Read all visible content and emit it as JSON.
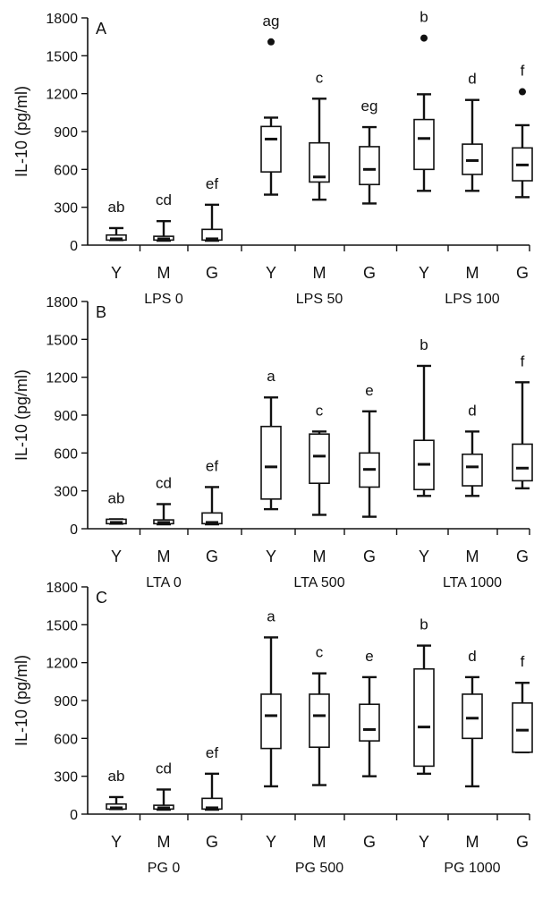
{
  "chart_data": [
    {
      "type": "box",
      "panel_label": "A",
      "ylabel": "IL-10 (pg/ml)",
      "ylim": [
        0,
        1800
      ],
      "yticks": [
        0,
        300,
        600,
        900,
        1200,
        1500,
        1800
      ],
      "categories": [
        "Y",
        "M",
        "G",
        "Y",
        "M",
        "G",
        "Y",
        "M",
        "G"
      ],
      "groups": [
        {
          "label": "LPS 0",
          "span": [
            0,
            2
          ]
        },
        {
          "label": "LPS 50",
          "span": [
            3,
            5
          ]
        },
        {
          "label": "LPS 100",
          "span": [
            6,
            8
          ]
        }
      ],
      "boxes": [
        {
          "min": 40,
          "q1": 40,
          "median": 50,
          "q3": 80,
          "max": 135,
          "outlier": null,
          "letter": "ab"
        },
        {
          "min": 35,
          "q1": 40,
          "median": 50,
          "q3": 70,
          "max": 190,
          "outlier": null,
          "letter": "cd"
        },
        {
          "min": 35,
          "q1": 40,
          "median": 50,
          "q3": 125,
          "max": 320,
          "outlier": null,
          "letter": "ef"
        },
        {
          "min": 400,
          "q1": 580,
          "median": 840,
          "q3": 940,
          "max": 1010,
          "outlier": 1610,
          "letter": "ag"
        },
        {
          "min": 360,
          "q1": 500,
          "median": 540,
          "q3": 810,
          "max": 1160,
          "outlier": null,
          "letter": "c"
        },
        {
          "min": 330,
          "q1": 480,
          "median": 600,
          "q3": 780,
          "max": 935,
          "outlier": null,
          "letter": "eg"
        },
        {
          "min": 430,
          "q1": 600,
          "median": 845,
          "q3": 995,
          "max": 1195,
          "outlier": 1640,
          "letter": "b"
        },
        {
          "min": 430,
          "q1": 560,
          "median": 670,
          "q3": 800,
          "max": 1150,
          "outlier": null,
          "letter": "d"
        },
        {
          "min": 380,
          "q1": 510,
          "median": 635,
          "q3": 770,
          "max": 950,
          "outlier": 1215,
          "letter": "f"
        }
      ]
    },
    {
      "type": "box",
      "panel_label": "B",
      "ylabel": "IL-10 (pg/ml)",
      "ylim": [
        0,
        1800
      ],
      "yticks": [
        0,
        300,
        600,
        900,
        1200,
        1500,
        1800
      ],
      "categories": [
        "Y",
        "M",
        "G",
        "Y",
        "M",
        "G",
        "Y",
        "M",
        "G"
      ],
      "groups": [
        {
          "label": "LTA 0",
          "span": [
            0,
            2
          ]
        },
        {
          "label": "LTA 500",
          "span": [
            3,
            5
          ]
        },
        {
          "label": "LTA 1000",
          "span": [
            6,
            8
          ]
        }
      ],
      "boxes": [
        {
          "min": 40,
          "q1": 40,
          "median": 50,
          "q3": 75,
          "max": 75,
          "outlier": null,
          "letter": "ab"
        },
        {
          "min": 35,
          "q1": 40,
          "median": 50,
          "q3": 70,
          "max": 195,
          "outlier": null,
          "letter": "cd"
        },
        {
          "min": 35,
          "q1": 40,
          "median": 50,
          "q3": 125,
          "max": 330,
          "outlier": null,
          "letter": "ef"
        },
        {
          "min": 155,
          "q1": 235,
          "median": 490,
          "q3": 810,
          "max": 1040,
          "outlier": null,
          "letter": "a"
        },
        {
          "min": 110,
          "q1": 360,
          "median": 575,
          "q3": 750,
          "max": 770,
          "outlier": null,
          "letter": "c"
        },
        {
          "min": 95,
          "q1": 330,
          "median": 470,
          "q3": 600,
          "max": 930,
          "outlier": null,
          "letter": "e"
        },
        {
          "min": 260,
          "q1": 310,
          "median": 510,
          "q3": 700,
          "max": 1290,
          "outlier": null,
          "letter": "b"
        },
        {
          "min": 260,
          "q1": 340,
          "median": 490,
          "q3": 590,
          "max": 770,
          "outlier": null,
          "letter": "d"
        },
        {
          "min": 320,
          "q1": 380,
          "median": 480,
          "q3": 670,
          "max": 1160,
          "outlier": null,
          "letter": "f"
        }
      ]
    },
    {
      "type": "box",
      "panel_label": "C",
      "ylabel": "IL-10 (pg/ml)",
      "ylim": [
        0,
        1800
      ],
      "yticks": [
        0,
        300,
        600,
        900,
        1200,
        1500,
        1800
      ],
      "categories": [
        "Y",
        "M",
        "G",
        "Y",
        "M",
        "G",
        "Y",
        "M",
        "G"
      ],
      "groups": [
        {
          "label": "PG 0",
          "span": [
            0,
            2
          ]
        },
        {
          "label": "PG 500",
          "span": [
            3,
            5
          ]
        },
        {
          "label": "PG 1000",
          "span": [
            6,
            8
          ]
        }
      ],
      "boxes": [
        {
          "min": 40,
          "q1": 40,
          "median": 50,
          "q3": 80,
          "max": 135,
          "outlier": null,
          "letter": "ab"
        },
        {
          "min": 35,
          "q1": 40,
          "median": 50,
          "q3": 70,
          "max": 195,
          "outlier": null,
          "letter": "cd"
        },
        {
          "min": 35,
          "q1": 40,
          "median": 50,
          "q3": 125,
          "max": 320,
          "outlier": null,
          "letter": "ef"
        },
        {
          "min": 220,
          "q1": 520,
          "median": 780,
          "q3": 950,
          "max": 1400,
          "outlier": null,
          "letter": "a"
        },
        {
          "min": 230,
          "q1": 530,
          "median": 780,
          "q3": 950,
          "max": 1115,
          "outlier": null,
          "letter": "c"
        },
        {
          "min": 300,
          "q1": 580,
          "median": 670,
          "q3": 870,
          "max": 1085,
          "outlier": null,
          "letter": "e"
        },
        {
          "min": 320,
          "q1": 380,
          "median": 690,
          "q3": 1150,
          "max": 1335,
          "outlier": null,
          "letter": "b"
        },
        {
          "min": 220,
          "q1": 600,
          "median": 760,
          "q3": 950,
          "max": 1085,
          "outlier": null,
          "letter": "d"
        },
        {
          "min": 490,
          "q1": 490,
          "median": 665,
          "q3": 880,
          "max": 1040,
          "outlier": null,
          "letter": "f"
        }
      ]
    }
  ]
}
